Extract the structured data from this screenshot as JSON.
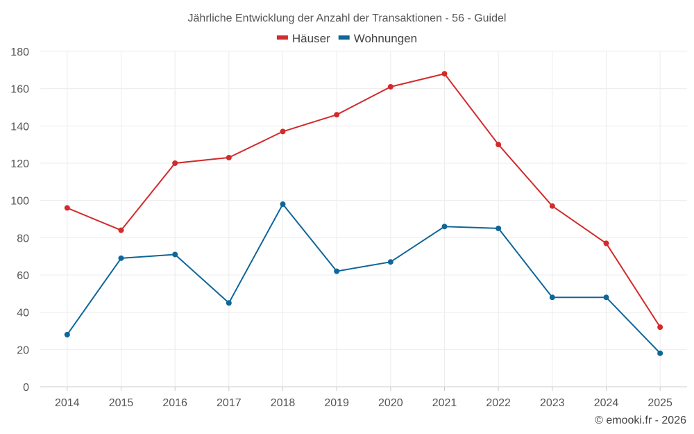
{
  "chart_data": {
    "type": "line",
    "title": "Jährliche Entwicklung der Anzahl der Transaktionen - 56 - Guidel",
    "categories": [
      "2014",
      "2015",
      "2016",
      "2017",
      "2018",
      "2019",
      "2020",
      "2021",
      "2022",
      "2023",
      "2024",
      "2025"
    ],
    "series": [
      {
        "name": "Häuser",
        "color": "#d32a2a",
        "values": [
          96,
          84,
          120,
          123,
          137,
          146,
          161,
          168,
          130,
          97,
          77,
          32
        ]
      },
      {
        "name": "Wohnungen",
        "color": "#0e6699",
        "values": [
          28,
          69,
          71,
          45,
          98,
          62,
          67,
          86,
          85,
          48,
          48,
          18
        ]
      }
    ],
    "ylim": [
      0,
      180
    ],
    "yticks": [
      0,
      20,
      40,
      60,
      80,
      100,
      120,
      140,
      160,
      180
    ],
    "grid": true,
    "legend_position": "top-center",
    "xlabel": "",
    "ylabel": ""
  },
  "credit": "© emooki.fr - 2026"
}
